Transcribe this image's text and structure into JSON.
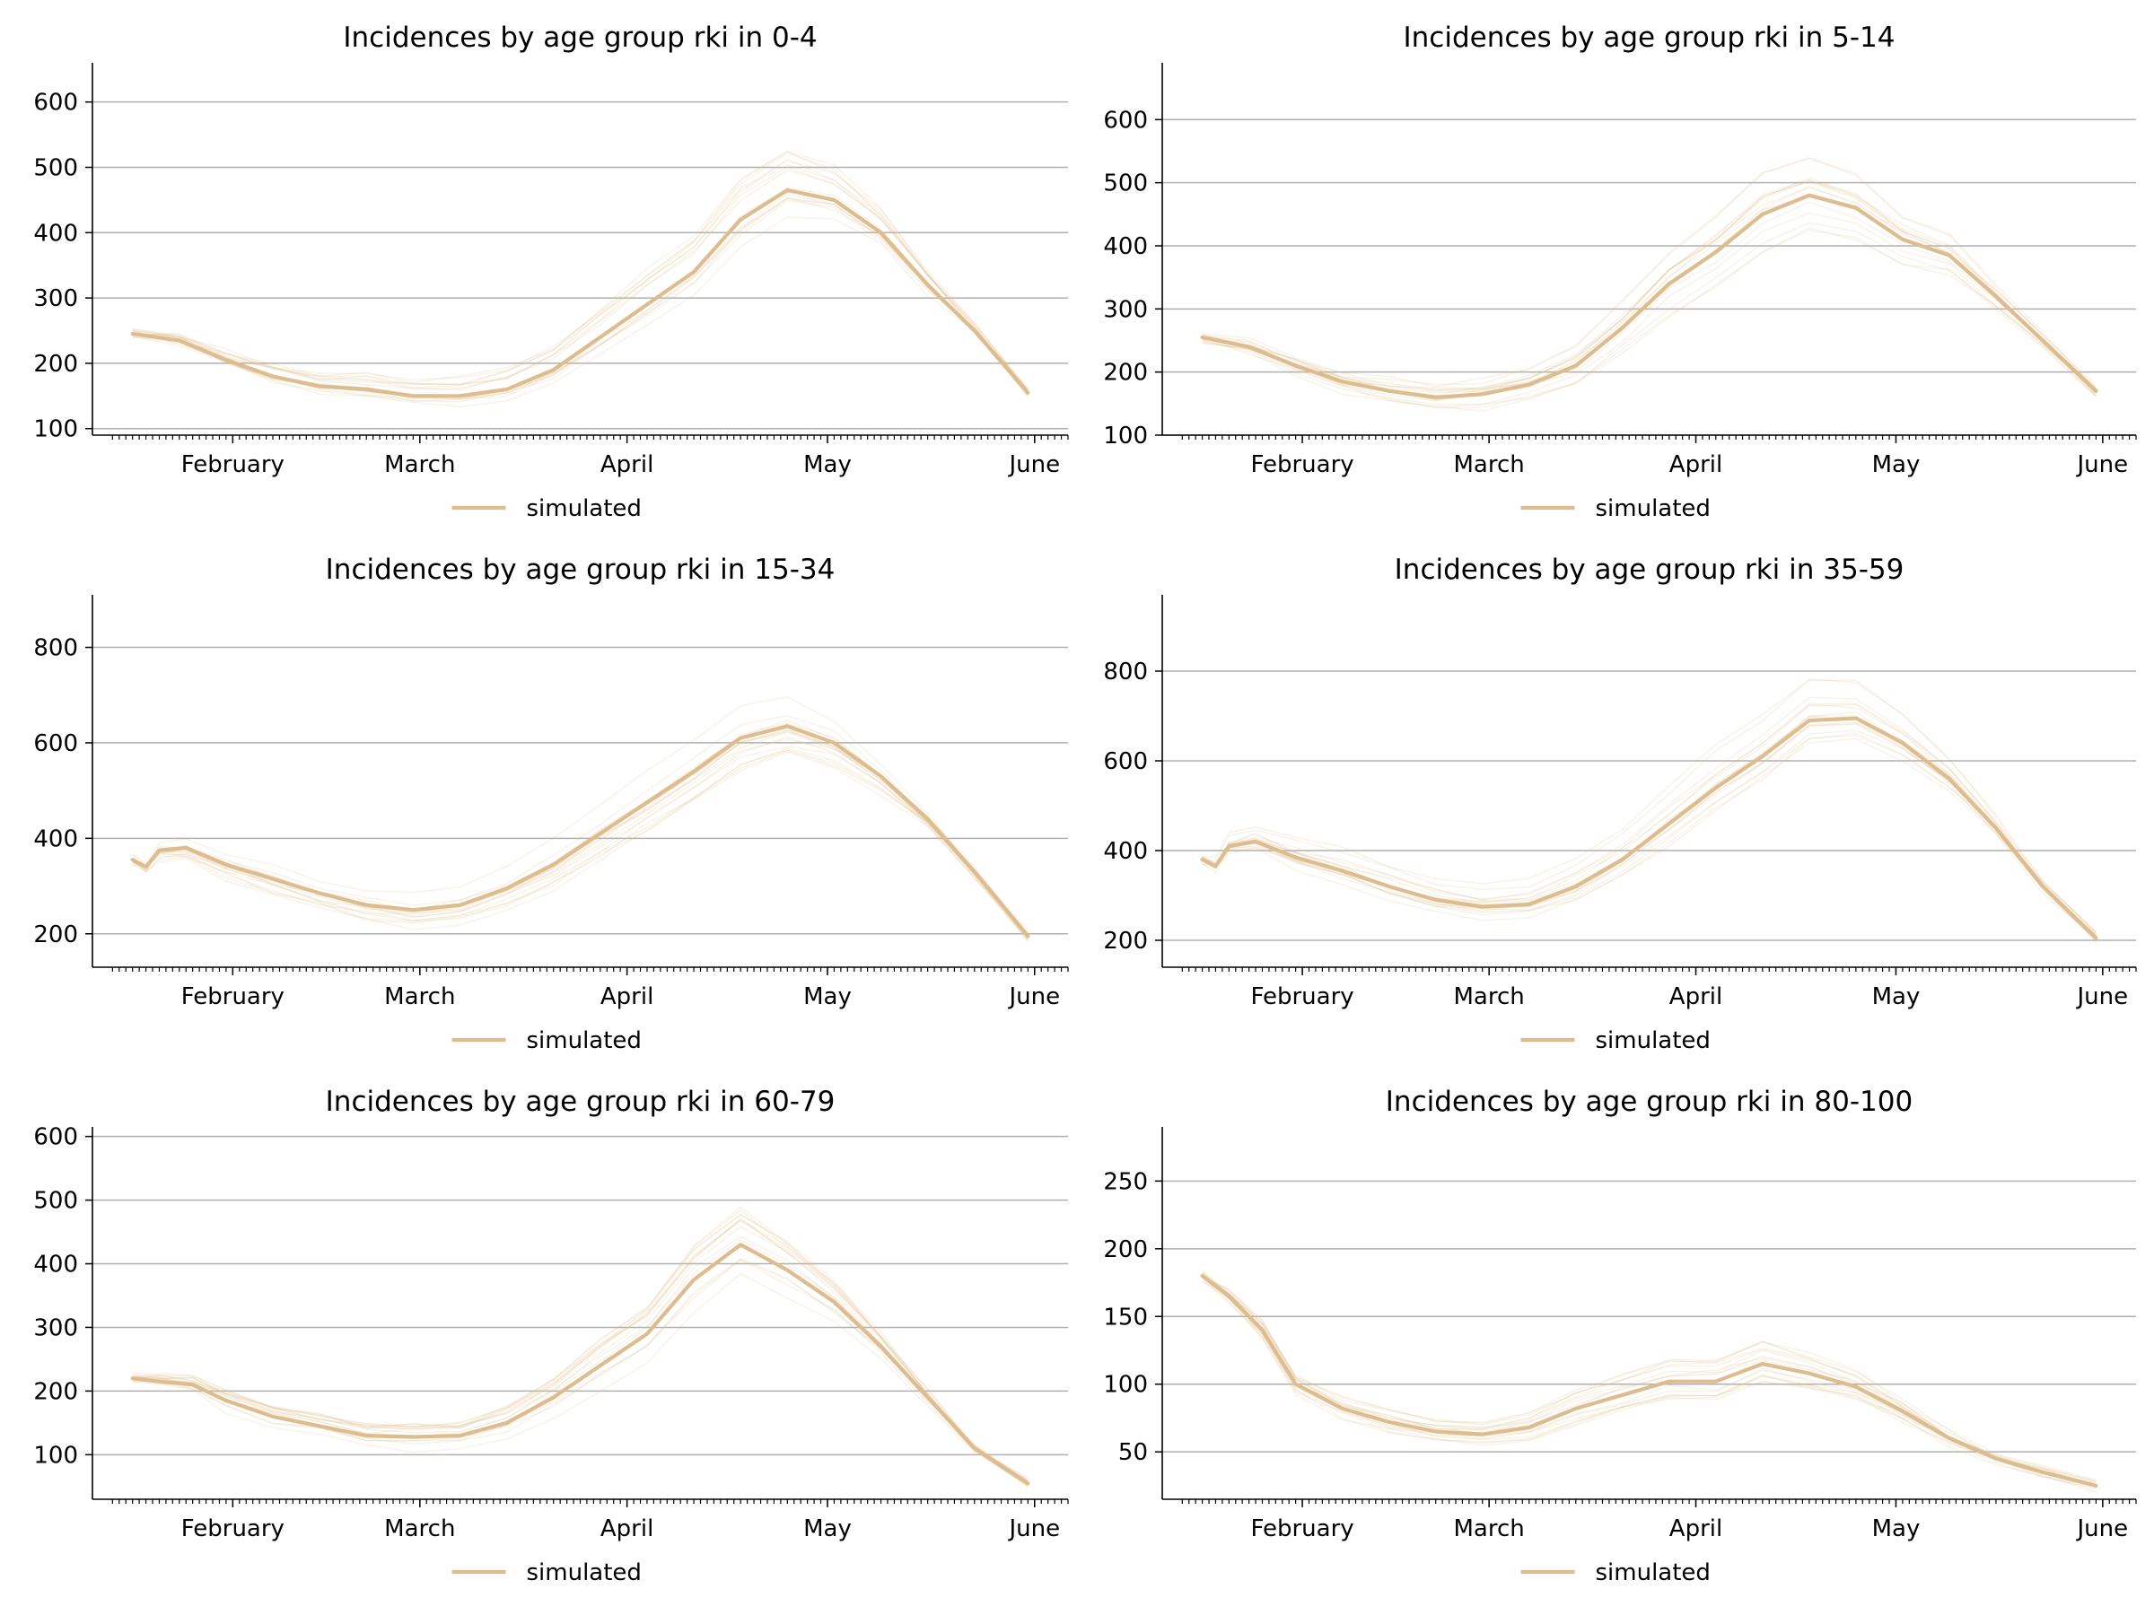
{
  "colors": {
    "series": "#ddbd8f",
    "grid": "#b0b0b0",
    "axis": "#000000"
  },
  "chart_data": [
    {
      "type": "line",
      "title": "Incidences by age group rki in 0-4",
      "xlabel": "",
      "ylabel": "",
      "x_tick_labels": [
        "February",
        "March",
        "April",
        "May",
        "June"
      ],
      "x_tick_dates": [
        "2021-02-01",
        "2021-03-01",
        "2021-04-01",
        "2021-05-01",
        "2021-06-01"
      ],
      "x_range": [
        "2021-01-11",
        "2021-06-06"
      ],
      "ylim": [
        90,
        660
      ],
      "y_ticks": [
        100,
        200,
        300,
        400,
        500,
        600
      ],
      "grid": "horizontal",
      "legend": {
        "position": "bottom-center",
        "entries": [
          "simulated"
        ]
      },
      "series": [
        {
          "name": "simulated",
          "x": [
            "2021-01-17",
            "2021-01-24",
            "2021-01-31",
            "2021-02-07",
            "2021-02-14",
            "2021-02-21",
            "2021-02-28",
            "2021-03-07",
            "2021-03-14",
            "2021-03-21",
            "2021-03-28",
            "2021-04-04",
            "2021-04-11",
            "2021-04-18",
            "2021-04-25",
            "2021-05-02",
            "2021-05-09",
            "2021-05-16",
            "2021-05-23",
            "2021-05-31"
          ],
          "values": [
            245,
            235,
            205,
            180,
            165,
            160,
            150,
            150,
            160,
            190,
            240,
            290,
            340,
            420,
            465,
            450,
            400,
            320,
            250,
            155
          ]
        }
      ]
    },
    {
      "type": "line",
      "title": "Incidences by age group rki in 5-14",
      "xlabel": "",
      "ylabel": "",
      "x_tick_labels": [
        "February",
        "March",
        "April",
        "May",
        "June"
      ],
      "x_tick_dates": [
        "2021-02-01",
        "2021-03-01",
        "2021-04-01",
        "2021-05-01",
        "2021-06-01"
      ],
      "x_range": [
        "2021-01-11",
        "2021-06-06"
      ],
      "ylim": [
        100,
        690
      ],
      "y_ticks": [
        100,
        200,
        300,
        400,
        500,
        600
      ],
      "grid": "horizontal",
      "legend": {
        "position": "bottom-center",
        "entries": [
          "simulated"
        ]
      },
      "series": [
        {
          "name": "simulated",
          "x": [
            "2021-01-17",
            "2021-01-24",
            "2021-01-31",
            "2021-02-07",
            "2021-02-14",
            "2021-02-21",
            "2021-02-28",
            "2021-03-07",
            "2021-03-14",
            "2021-03-21",
            "2021-03-28",
            "2021-04-04",
            "2021-04-11",
            "2021-04-18",
            "2021-04-25",
            "2021-05-02",
            "2021-05-09",
            "2021-05-16",
            "2021-05-23",
            "2021-05-31"
          ],
          "values": [
            255,
            240,
            210,
            185,
            170,
            160,
            165,
            180,
            210,
            270,
            340,
            390,
            450,
            480,
            460,
            410,
            385,
            320,
            250,
            170
          ]
        }
      ]
    },
    {
      "type": "line",
      "title": "Incidences by age group rki in 15-34",
      "xlabel": "",
      "ylabel": "",
      "x_tick_labels": [
        "February",
        "March",
        "April",
        "May",
        "June"
      ],
      "x_tick_dates": [
        "2021-02-01",
        "2021-03-01",
        "2021-04-01",
        "2021-05-01",
        "2021-06-01"
      ],
      "x_range": [
        "2021-01-11",
        "2021-06-06"
      ],
      "ylim": [
        130,
        910
      ],
      "y_ticks": [
        200,
        400,
        600,
        800
      ],
      "grid": "horizontal",
      "legend": {
        "position": "bottom-center",
        "entries": [
          "simulated"
        ]
      },
      "series": [
        {
          "name": "simulated",
          "x": [
            "2021-01-17",
            "2021-01-19",
            "2021-01-21",
            "2021-01-25",
            "2021-01-31",
            "2021-02-07",
            "2021-02-14",
            "2021-02-21",
            "2021-02-28",
            "2021-03-07",
            "2021-03-14",
            "2021-03-21",
            "2021-03-28",
            "2021-04-04",
            "2021-04-11",
            "2021-04-18",
            "2021-04-25",
            "2021-05-02",
            "2021-05-09",
            "2021-05-16",
            "2021-05-23",
            "2021-05-31"
          ],
          "values": [
            355,
            340,
            375,
            380,
            345,
            315,
            285,
            260,
            250,
            260,
            295,
            345,
            410,
            475,
            540,
            610,
            635,
            600,
            530,
            440,
            330,
            195
          ]
        }
      ]
    },
    {
      "type": "line",
      "title": "Incidences by age group rki in 35-59",
      "xlabel": "",
      "ylabel": "",
      "x_tick_labels": [
        "February",
        "March",
        "April",
        "May",
        "June"
      ],
      "x_tick_dates": [
        "2021-02-01",
        "2021-03-01",
        "2021-04-01",
        "2021-05-01",
        "2021-06-01"
      ],
      "x_range": [
        "2021-01-11",
        "2021-06-06"
      ],
      "ylim": [
        140,
        970
      ],
      "y_ticks": [
        200,
        400,
        600,
        800
      ],
      "grid": "horizontal",
      "legend": {
        "position": "bottom-center",
        "entries": [
          "simulated"
        ]
      },
      "series": [
        {
          "name": "simulated",
          "x": [
            "2021-01-17",
            "2021-01-19",
            "2021-01-21",
            "2021-01-25",
            "2021-01-31",
            "2021-02-07",
            "2021-02-14",
            "2021-02-21",
            "2021-02-28",
            "2021-03-07",
            "2021-03-14",
            "2021-03-21",
            "2021-03-28",
            "2021-04-04",
            "2021-04-11",
            "2021-04-18",
            "2021-04-25",
            "2021-05-02",
            "2021-05-09",
            "2021-05-16",
            "2021-05-23",
            "2021-05-31"
          ],
          "values": [
            380,
            365,
            410,
            420,
            385,
            355,
            320,
            290,
            275,
            280,
            320,
            380,
            460,
            540,
            610,
            690,
            695,
            640,
            560,
            450,
            320,
            205
          ]
        }
      ]
    },
    {
      "type": "line",
      "title": "Incidences by age group rki in 60-79",
      "xlabel": "",
      "ylabel": "",
      "x_tick_labels": [
        "February",
        "March",
        "April",
        "May",
        "June"
      ],
      "x_tick_dates": [
        "2021-02-01",
        "2021-03-01",
        "2021-04-01",
        "2021-05-01",
        "2021-06-01"
      ],
      "x_range": [
        "2021-01-11",
        "2021-06-06"
      ],
      "ylim": [
        30,
        615
      ],
      "y_ticks": [
        100,
        200,
        300,
        400,
        500,
        600
      ],
      "grid": "horizontal",
      "legend": {
        "position": "bottom-center",
        "entries": [
          "simulated"
        ]
      },
      "series": [
        {
          "name": "simulated",
          "x": [
            "2021-01-17",
            "2021-01-21",
            "2021-01-26",
            "2021-01-31",
            "2021-02-07",
            "2021-02-14",
            "2021-02-21",
            "2021-02-28",
            "2021-03-07",
            "2021-03-14",
            "2021-03-21",
            "2021-03-28",
            "2021-04-04",
            "2021-04-11",
            "2021-04-18",
            "2021-04-25",
            "2021-05-02",
            "2021-05-09",
            "2021-05-16",
            "2021-05-23",
            "2021-05-31"
          ],
          "values": [
            220,
            215,
            210,
            185,
            160,
            145,
            130,
            128,
            130,
            150,
            190,
            240,
            290,
            375,
            430,
            390,
            340,
            270,
            190,
            110,
            55
          ]
        }
      ]
    },
    {
      "type": "line",
      "title": "Incidences by age group rki in 80-100",
      "xlabel": "",
      "ylabel": "",
      "x_tick_labels": [
        "February",
        "March",
        "April",
        "May",
        "June"
      ],
      "x_tick_dates": [
        "2021-02-01",
        "2021-03-01",
        "2021-04-01",
        "2021-05-01",
        "2021-06-01"
      ],
      "x_range": [
        "2021-01-11",
        "2021-06-06"
      ],
      "ylim": [
        15,
        290
      ],
      "y_ticks": [
        50,
        100,
        150,
        200,
        250
      ],
      "grid": "horizontal",
      "legend": {
        "position": "bottom-center",
        "entries": [
          "simulated"
        ]
      },
      "series": [
        {
          "name": "simulated",
          "x": [
            "2021-01-17",
            "2021-01-21",
            "2021-01-26",
            "2021-01-31",
            "2021-02-07",
            "2021-02-14",
            "2021-02-21",
            "2021-02-28",
            "2021-03-07",
            "2021-03-14",
            "2021-03-21",
            "2021-03-28",
            "2021-04-04",
            "2021-04-11",
            "2021-04-18",
            "2021-04-25",
            "2021-05-02",
            "2021-05-09",
            "2021-05-16",
            "2021-05-23",
            "2021-05-31"
          ],
          "values": [
            180,
            165,
            140,
            100,
            82,
            72,
            65,
            63,
            68,
            82,
            92,
            102,
            102,
            115,
            108,
            98,
            80,
            60,
            45,
            35,
            25
          ]
        }
      ]
    }
  ]
}
